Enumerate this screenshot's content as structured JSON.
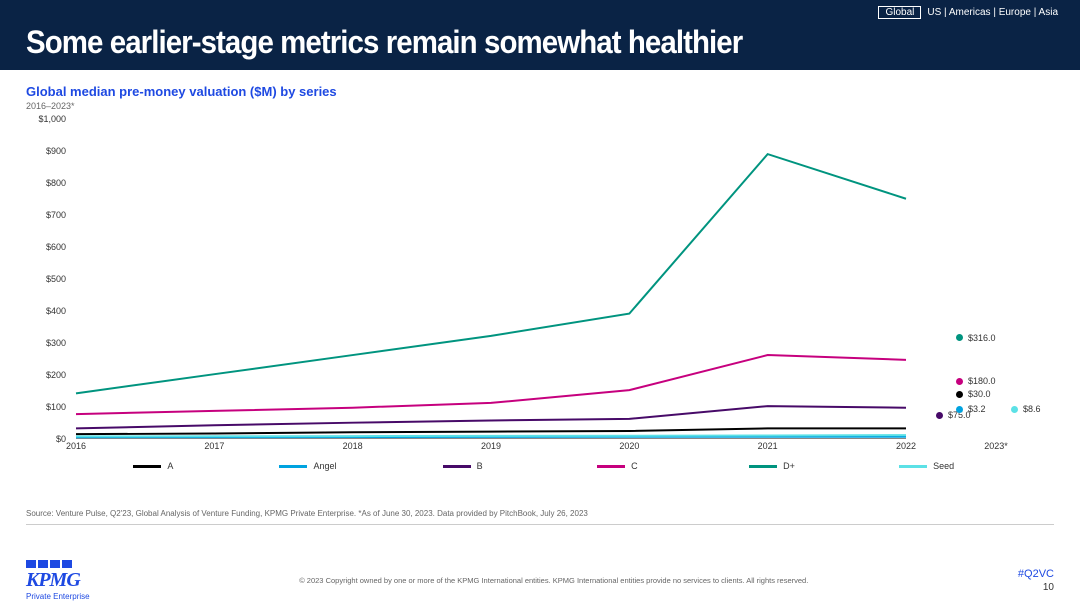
{
  "header": {
    "title": "Some earlier-stage metrics remain somewhat healthier",
    "regions": {
      "active": "Global",
      "others": [
        "US",
        "Americas",
        "Europe",
        "Asia"
      ],
      "separator": " | "
    }
  },
  "chart": {
    "type": "line",
    "title": "Global median pre-money valuation ($M) by series",
    "subtitle": "2016–2023*",
    "title_color": "#1e49e2",
    "title_fontsize": 13,
    "subtitle_fontsize": 9,
    "background_color": "#ffffff",
    "ylim": [
      0,
      1000
    ],
    "ytick_step": 100,
    "y_prefix": "$",
    "y_format_thousands": true,
    "x_labels": [
      "2016",
      "2017",
      "2018",
      "2019",
      "2020",
      "2021",
      "2022",
      "2023*"
    ],
    "connected_last_index": 6,
    "line_width": 2,
    "marker_radius": 3.5,
    "axis_color": "#888888",
    "text_color": "#333333",
    "series": [
      {
        "name": "A",
        "color": "#000000",
        "values": [
          12,
          14,
          18,
          20,
          22,
          30,
          30,
          30.0
        ],
        "end_label": "$30.0"
      },
      {
        "name": "Angel",
        "color": "#00a3e0",
        "values": [
          2.5,
          2.8,
          3.2,
          3.5,
          3.8,
          4.0,
          4.0,
          3.2
        ],
        "end_label": "$3.2"
      },
      {
        "name": "B",
        "color": "#470a68",
        "values": [
          30,
          40,
          48,
          55,
          60,
          100,
          95,
          75.0
        ],
        "end_label": "$75.0"
      },
      {
        "name": "C",
        "color": "#c6007e",
        "values": [
          75,
          85,
          95,
          110,
          150,
          260,
          245,
          180.0
        ],
        "end_label": "$180.0"
      },
      {
        "name": "D+",
        "color": "#00947f",
        "values": [
          140,
          200,
          260,
          320,
          390,
          890,
          750,
          316.0
        ],
        "end_label": "$316.0"
      },
      {
        "name": "Seed",
        "color": "#5ce1e6",
        "values": [
          5,
          5.5,
          6,
          6.5,
          7,
          8,
          9,
          8.6
        ],
        "end_label": "$8.6"
      }
    ],
    "endpoint_display_order": [
      "D+",
      "C",
      "B",
      "A",
      "Angel",
      "Seed"
    ],
    "endpoint_y_overrides": {
      "A": 275,
      "Angel": 290,
      "Seed": 290
    },
    "endpoint_x_overrides": {
      "Seed": 55,
      "Angel": 0,
      "B": -20
    }
  },
  "source": "Source: Venture Pulse, Q2'23, Global Analysis of Venture Funding, KPMG Private Enterprise. *As of June 30, 2023. Data provided by PitchBook, July 26, 2023",
  "footer": {
    "logo_main": "KPMG",
    "logo_sub": "Private Enterprise",
    "copyright": "© 2023 Copyright owned by one or more of the KPMG International entities. KPMG International entities provide no services to clients. All rights reserved.",
    "hashtag": "#Q2VC",
    "page_number": "10"
  }
}
